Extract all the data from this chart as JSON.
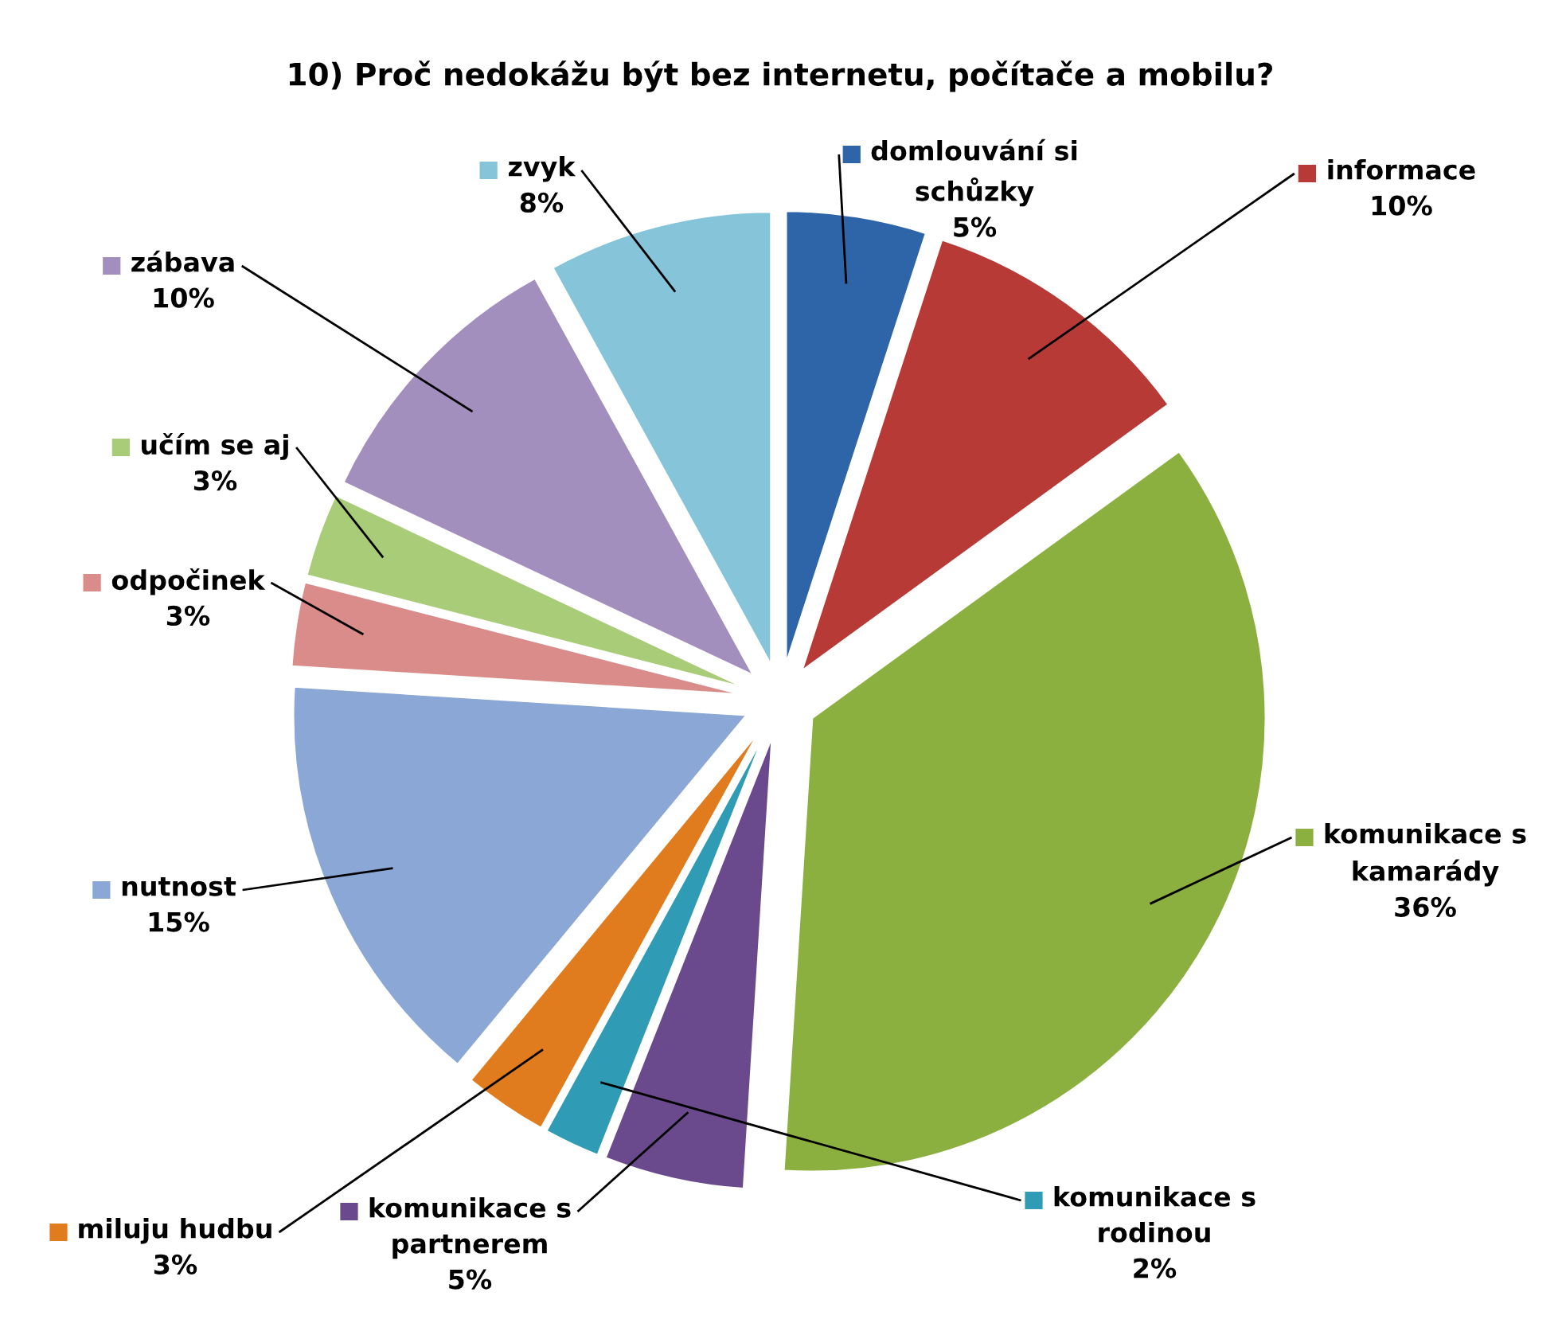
{
  "chart_data": {
    "type": "pie",
    "title": "10) Proč nedokážu být bez internetu, počítače a mobilu?",
    "categories": [
      "domlouvání si schůzky",
      "informace",
      "komunikace s kamarády",
      "komunikace s partnerem",
      "komunikace s rodinou",
      "miluju hudbu",
      "nutnost",
      "odpočinek",
      "učím se aj",
      "zábava",
      "zvyk"
    ],
    "values": [
      5,
      10,
      36,
      5,
      2,
      3,
      15,
      3,
      3,
      10,
      8
    ],
    "colors": [
      "#2e65a8",
      "#b83a36",
      "#8bb03f",
      "#6a4a8c",
      "#2f9bb5",
      "#e07c1e",
      "#8aa7d6",
      "#d98c8a",
      "#a9cc78",
      "#a38fbd",
      "#86c4da"
    ],
    "value_labels": [
      "5%",
      "10%",
      "36%",
      "5%",
      "2%",
      "3%",
      "15%",
      "3%",
      "3%",
      "10%",
      "8%"
    ],
    "legend": "right"
  }
}
